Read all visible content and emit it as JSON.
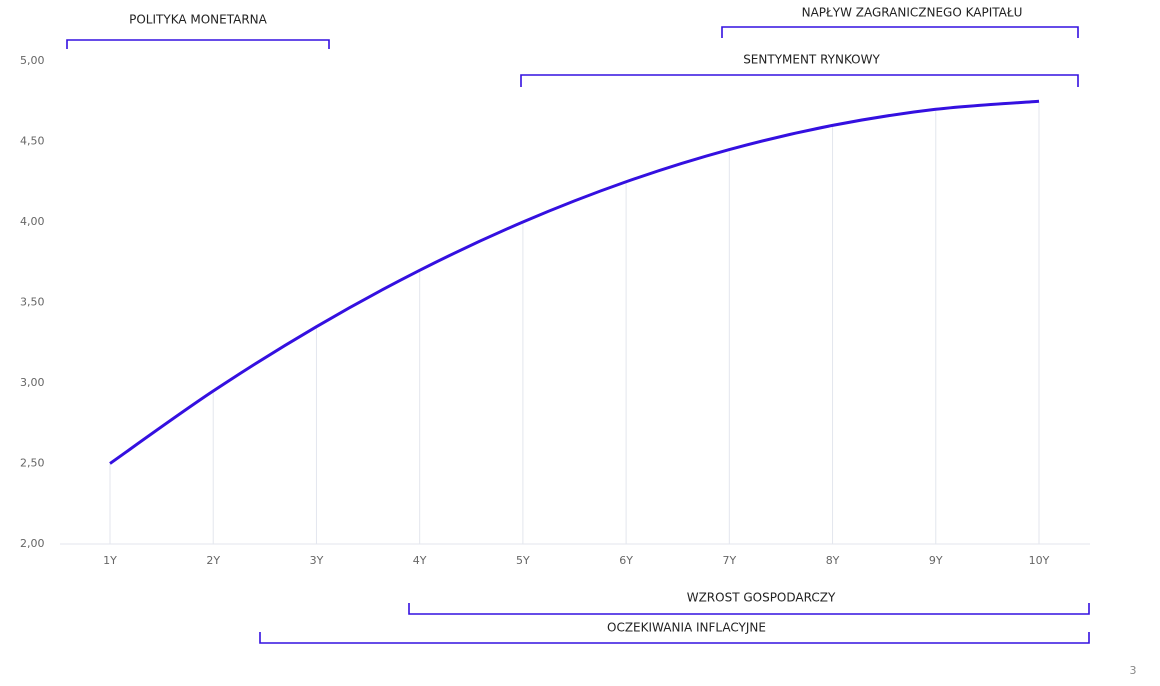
{
  "chart_data": {
    "type": "line",
    "categories": [
      "1Y",
      "2Y",
      "3Y",
      "4Y",
      "5Y",
      "6Y",
      "7Y",
      "8Y",
      "9Y",
      "10Y"
    ],
    "series": [
      {
        "color": "#3410e0",
        "values": [
          2.5,
          2.95,
          3.35,
          3.7,
          4.0,
          4.25,
          4.45,
          4.6,
          4.7,
          4.75
        ]
      }
    ],
    "ylim": [
      2,
      5
    ],
    "yticks": [
      {
        "value": 2,
        "label": "2,00"
      },
      {
        "value": 2.5,
        "label": "2,50"
      },
      {
        "value": 3,
        "label": "3,00"
      },
      {
        "value": 3.5,
        "label": "3,50"
      },
      {
        "value": 4,
        "label": "4,00"
      },
      {
        "value": 4.5,
        "label": "4,50"
      },
      {
        "value": 5,
        "label": "5,00"
      }
    ],
    "annotations": [
      "POLITYKA MONETARNA",
      "NAPŁYW ZAGRANICZNEGO KAPITAŁU",
      "SENTYMENT RYNKOWY",
      "WZROST GOSPODARCZY",
      "OCZEKIWANIA INFLACYJNE"
    ]
  },
  "page_number": "3"
}
